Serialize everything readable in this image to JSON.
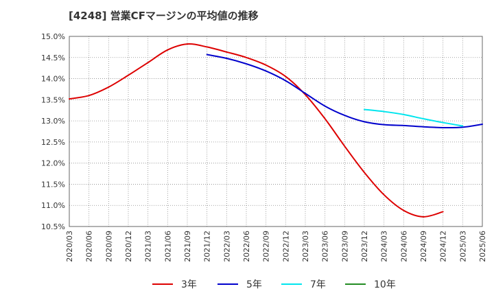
{
  "chart_data": {
    "type": "line",
    "title": "[4248]  営業CFマージンの平均値の推移",
    "xlabel": "",
    "ylabel": "",
    "ylim": [
      10.5,
      15.0
    ],
    "grid": true,
    "legend_position": "bottom",
    "x_ticks": [
      "2020/03",
      "2020/06",
      "2020/09",
      "2020/12",
      "2021/03",
      "2021/06",
      "2021/09",
      "2021/12",
      "2022/03",
      "2022/06",
      "2022/09",
      "2022/12",
      "2023/03",
      "2023/06",
      "2023/09",
      "2023/12",
      "2024/03",
      "2024/06",
      "2024/09",
      "2024/12",
      "2025/03",
      "2025/06"
    ],
    "y_ticks": [
      15.0,
      14.5,
      14.0,
      13.5,
      13.0,
      12.5,
      12.0,
      11.5,
      11.0,
      10.5
    ],
    "y_tick_labels": [
      "15.0%",
      "14.5%",
      "14.0%",
      "13.5%",
      "13.0%",
      "12.5%",
      "12.0%",
      "11.5%",
      "11.0%",
      "10.5%"
    ],
    "series": [
      {
        "name": "3年",
        "color": "#dd0000",
        "start_index": 0,
        "values": [
          13.52,
          13.6,
          13.8,
          14.08,
          14.38,
          14.68,
          14.82,
          14.75,
          14.63,
          14.5,
          14.32,
          14.05,
          13.62,
          13.05,
          12.4,
          11.78,
          11.25,
          10.88,
          10.73,
          10.85
        ]
      },
      {
        "name": "5年",
        "color": "#0000cc",
        "start_index": 7,
        "values": [
          14.57,
          14.48,
          14.35,
          14.18,
          13.95,
          13.65,
          13.35,
          13.13,
          12.98,
          12.91,
          12.89,
          12.86,
          12.84,
          12.85,
          12.92
        ]
      },
      {
        "name": "7年",
        "color": "#00e5ee",
        "start_index": 15,
        "values": [
          13.27,
          13.22,
          13.15,
          13.05,
          12.96,
          12.88
        ]
      },
      {
        "name": "10年",
        "color": "#228b22",
        "start_index": 0,
        "values": []
      }
    ]
  }
}
